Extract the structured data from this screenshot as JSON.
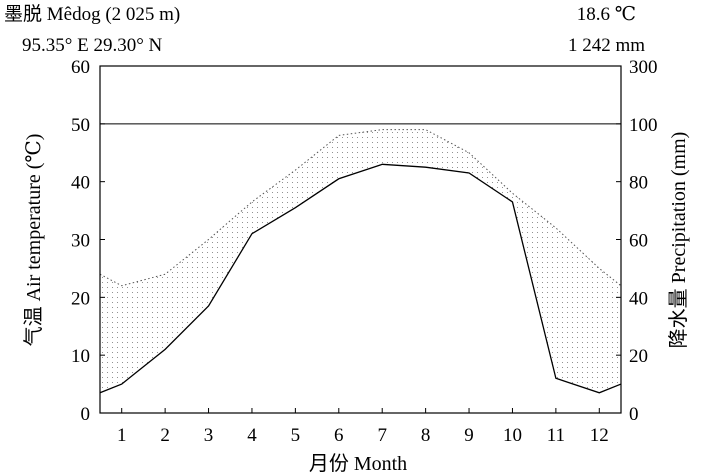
{
  "chart_data": {
    "type": "line",
    "header": {
      "station": "墨脱 Mêdog (2 025 m)",
      "coords": "95.35° E 29.30° N",
      "mean_temp": "18.6 ℃",
      "annual_precip": "1 242 mm"
    },
    "xlabel": "月份 Month",
    "ylabel_left": "气温 Air temperature (℃)",
    "ylabel_right": "降水量 Precipitation (mm)",
    "categories": [
      "1",
      "2",
      "3",
      "4",
      "5",
      "6",
      "7",
      "8",
      "9",
      "10",
      "11",
      "12"
    ],
    "x_range": [
      0.5,
      12.5
    ],
    "ylim_left": [
      0,
      60
    ],
    "yticks_left": [
      0,
      10,
      20,
      30,
      40,
      50,
      60
    ],
    "ylim_right": [
      0,
      300
    ],
    "yticks_right": [
      0,
      20,
      40,
      60,
      80,
      100,
      300
    ],
    "grid": false,
    "series": [
      {
        "axis": "left",
        "style": "solid",
        "x": [
          0.5,
          1,
          2,
          3,
          4,
          5,
          6,
          7,
          8,
          9,
          10,
          11,
          12,
          12.5
        ],
        "values": [
          3.5,
          5,
          11,
          18.5,
          31,
          35.5,
          40.5,
          43,
          42.5,
          41.5,
          36.5,
          6,
          3.5,
          5
        ]
      },
      {
        "axis": "right",
        "style": "dotted",
        "x": [
          0.5,
          1,
          2,
          3,
          4,
          5,
          6,
          7,
          8,
          9,
          10,
          11,
          12,
          12.5
        ],
        "values": [
          24,
          22,
          24,
          30,
          36.5,
          42,
          48,
          49,
          49,
          45,
          38,
          32,
          25,
          22
        ]
      }
    ],
    "fills": {
      "humid": "vertical-hatch",
      "arid": "dotted",
      "perhumid": "#000000"
    }
  }
}
